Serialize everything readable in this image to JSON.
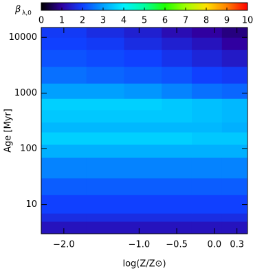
{
  "chart_data": {
    "type": "heatmap",
    "colorbar_label": "β",
    "colorbar_label_sub": "λ,0",
    "xlabel": "log(Z/Z⊙)",
    "ylabel": "Age [Myr]",
    "xbins": [
      -2.3,
      -1.7,
      -1.2,
      -0.7,
      -0.3,
      0.1,
      0.44
    ],
    "ybins": [
      3,
      5,
      7,
      15,
      30,
      70,
      120,
      200,
      300,
      500,
      800,
      1500,
      3000,
      6000,
      10000,
      15000
    ],
    "z": [
      [
        1.3,
        1.3,
        1.3,
        1.3,
        1.3,
        1.3
      ],
      [
        1.7,
        1.7,
        1.7,
        1.7,
        1.7,
        1.7
      ],
      [
        2.0,
        2.0,
        2.0,
        2.0,
        2.0,
        2.0
      ],
      [
        2.3,
        2.3,
        2.3,
        2.3,
        2.3,
        2.3
      ],
      [
        2.7,
        2.7,
        2.7,
        2.7,
        2.7,
        2.7
      ],
      [
        3.2,
        3.2,
        3.2,
        3.2,
        3.2,
        3.2
      ],
      [
        3.6,
        3.6,
        3.6,
        3.6,
        3.5,
        3.5
      ],
      [
        3.3,
        3.3,
        3.3,
        3.3,
        3.3,
        3.2
      ],
      [
        3.5,
        3.5,
        3.5,
        3.5,
        3.4,
        3.3
      ],
      [
        3.6,
        3.6,
        3.6,
        3.5,
        3.4,
        3.3
      ],
      [
        3.0,
        3.0,
        2.9,
        2.7,
        2.5,
        2.4
      ],
      [
        2.5,
        2.4,
        2.3,
        2.2,
        2.0,
        1.9
      ],
      [
        2.2,
        2.1,
        2.0,
        1.8,
        1.6,
        1.4
      ],
      [
        2.0,
        1.9,
        1.7,
        1.5,
        1.3,
        1.0
      ],
      [
        1.9,
        1.7,
        1.5,
        1.2,
        1.0,
        0.8
      ]
    ],
    "clim": [
      0,
      10
    ],
    "cticks": [
      0,
      1,
      2,
      3,
      4,
      5,
      6,
      7,
      8,
      9,
      10
    ],
    "colormap": [
      "#000000",
      "#3000a0",
      "#1040ff",
      "#00a0ff",
      "#00f0ff",
      "#00ffa0",
      "#20ff00",
      "#a0ff00",
      "#ffe000",
      "#ff8000",
      "#ff0000"
    ],
    "xlim": [
      -2.3,
      0.44
    ],
    "xticks": [
      {
        "value": -2,
        "label": "−2.0"
      },
      {
        "value": -1,
        "label": "−1.0"
      },
      {
        "value": -0.5,
        "label": "−0.5"
      },
      {
        "value": 0,
        "label": "0.0"
      },
      {
        "value": 0.3,
        "label": "0.3"
      }
    ],
    "ylim": [
      3,
      15000
    ],
    "yticks": [
      10,
      100,
      1000,
      10000
    ],
    "ylog": true
  }
}
